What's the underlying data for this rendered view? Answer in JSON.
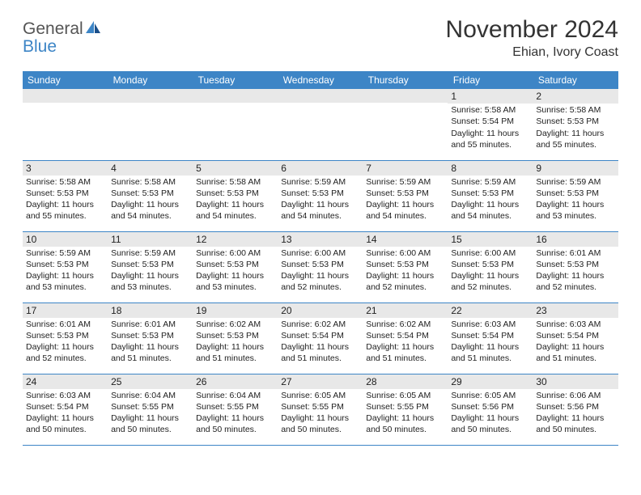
{
  "brand": {
    "word1": "General",
    "word2": "Blue"
  },
  "header": {
    "month_title": "November 2024",
    "location": "Ehian, Ivory Coast"
  },
  "colors": {
    "header_bg": "#3d85c6",
    "header_text": "#ffffff",
    "daynum_bg": "#e8e8e8",
    "rule": "#3d85c6",
    "text": "#222222",
    "brand_gray": "#555555",
    "brand_blue": "#3d85c6",
    "page_bg": "#ffffff"
  },
  "typography": {
    "month_title_fontsize": 30,
    "location_fontsize": 16,
    "weekday_fontsize": 12,
    "daynum_fontsize": 12,
    "body_fontsize": 10.5,
    "font_family": "Arial"
  },
  "calendar": {
    "type": "table",
    "columns": [
      "Sunday",
      "Monday",
      "Tuesday",
      "Wednesday",
      "Thursday",
      "Friday",
      "Saturday"
    ],
    "weeks": [
      [
        {
          "day": null
        },
        {
          "day": null
        },
        {
          "day": null
        },
        {
          "day": null
        },
        {
          "day": null
        },
        {
          "day": "1",
          "sunrise": "Sunrise: 5:58 AM",
          "sunset": "Sunset: 5:54 PM",
          "daylight1": "Daylight: 11 hours",
          "daylight2": "and 55 minutes."
        },
        {
          "day": "2",
          "sunrise": "Sunrise: 5:58 AM",
          "sunset": "Sunset: 5:53 PM",
          "daylight1": "Daylight: 11 hours",
          "daylight2": "and 55 minutes."
        }
      ],
      [
        {
          "day": "3",
          "sunrise": "Sunrise: 5:58 AM",
          "sunset": "Sunset: 5:53 PM",
          "daylight1": "Daylight: 11 hours",
          "daylight2": "and 55 minutes."
        },
        {
          "day": "4",
          "sunrise": "Sunrise: 5:58 AM",
          "sunset": "Sunset: 5:53 PM",
          "daylight1": "Daylight: 11 hours",
          "daylight2": "and 54 minutes."
        },
        {
          "day": "5",
          "sunrise": "Sunrise: 5:58 AM",
          "sunset": "Sunset: 5:53 PM",
          "daylight1": "Daylight: 11 hours",
          "daylight2": "and 54 minutes."
        },
        {
          "day": "6",
          "sunrise": "Sunrise: 5:59 AM",
          "sunset": "Sunset: 5:53 PM",
          "daylight1": "Daylight: 11 hours",
          "daylight2": "and 54 minutes."
        },
        {
          "day": "7",
          "sunrise": "Sunrise: 5:59 AM",
          "sunset": "Sunset: 5:53 PM",
          "daylight1": "Daylight: 11 hours",
          "daylight2": "and 54 minutes."
        },
        {
          "day": "8",
          "sunrise": "Sunrise: 5:59 AM",
          "sunset": "Sunset: 5:53 PM",
          "daylight1": "Daylight: 11 hours",
          "daylight2": "and 54 minutes."
        },
        {
          "day": "9",
          "sunrise": "Sunrise: 5:59 AM",
          "sunset": "Sunset: 5:53 PM",
          "daylight1": "Daylight: 11 hours",
          "daylight2": "and 53 minutes."
        }
      ],
      [
        {
          "day": "10",
          "sunrise": "Sunrise: 5:59 AM",
          "sunset": "Sunset: 5:53 PM",
          "daylight1": "Daylight: 11 hours",
          "daylight2": "and 53 minutes."
        },
        {
          "day": "11",
          "sunrise": "Sunrise: 5:59 AM",
          "sunset": "Sunset: 5:53 PM",
          "daylight1": "Daylight: 11 hours",
          "daylight2": "and 53 minutes."
        },
        {
          "day": "12",
          "sunrise": "Sunrise: 6:00 AM",
          "sunset": "Sunset: 5:53 PM",
          "daylight1": "Daylight: 11 hours",
          "daylight2": "and 53 minutes."
        },
        {
          "day": "13",
          "sunrise": "Sunrise: 6:00 AM",
          "sunset": "Sunset: 5:53 PM",
          "daylight1": "Daylight: 11 hours",
          "daylight2": "and 52 minutes."
        },
        {
          "day": "14",
          "sunrise": "Sunrise: 6:00 AM",
          "sunset": "Sunset: 5:53 PM",
          "daylight1": "Daylight: 11 hours",
          "daylight2": "and 52 minutes."
        },
        {
          "day": "15",
          "sunrise": "Sunrise: 6:00 AM",
          "sunset": "Sunset: 5:53 PM",
          "daylight1": "Daylight: 11 hours",
          "daylight2": "and 52 minutes."
        },
        {
          "day": "16",
          "sunrise": "Sunrise: 6:01 AM",
          "sunset": "Sunset: 5:53 PM",
          "daylight1": "Daylight: 11 hours",
          "daylight2": "and 52 minutes."
        }
      ],
      [
        {
          "day": "17",
          "sunrise": "Sunrise: 6:01 AM",
          "sunset": "Sunset: 5:53 PM",
          "daylight1": "Daylight: 11 hours",
          "daylight2": "and 52 minutes."
        },
        {
          "day": "18",
          "sunrise": "Sunrise: 6:01 AM",
          "sunset": "Sunset: 5:53 PM",
          "daylight1": "Daylight: 11 hours",
          "daylight2": "and 51 minutes."
        },
        {
          "day": "19",
          "sunrise": "Sunrise: 6:02 AM",
          "sunset": "Sunset: 5:53 PM",
          "daylight1": "Daylight: 11 hours",
          "daylight2": "and 51 minutes."
        },
        {
          "day": "20",
          "sunrise": "Sunrise: 6:02 AM",
          "sunset": "Sunset: 5:54 PM",
          "daylight1": "Daylight: 11 hours",
          "daylight2": "and 51 minutes."
        },
        {
          "day": "21",
          "sunrise": "Sunrise: 6:02 AM",
          "sunset": "Sunset: 5:54 PM",
          "daylight1": "Daylight: 11 hours",
          "daylight2": "and 51 minutes."
        },
        {
          "day": "22",
          "sunrise": "Sunrise: 6:03 AM",
          "sunset": "Sunset: 5:54 PM",
          "daylight1": "Daylight: 11 hours",
          "daylight2": "and 51 minutes."
        },
        {
          "day": "23",
          "sunrise": "Sunrise: 6:03 AM",
          "sunset": "Sunset: 5:54 PM",
          "daylight1": "Daylight: 11 hours",
          "daylight2": "and 51 minutes."
        }
      ],
      [
        {
          "day": "24",
          "sunrise": "Sunrise: 6:03 AM",
          "sunset": "Sunset: 5:54 PM",
          "daylight1": "Daylight: 11 hours",
          "daylight2": "and 50 minutes."
        },
        {
          "day": "25",
          "sunrise": "Sunrise: 6:04 AM",
          "sunset": "Sunset: 5:55 PM",
          "daylight1": "Daylight: 11 hours",
          "daylight2": "and 50 minutes."
        },
        {
          "day": "26",
          "sunrise": "Sunrise: 6:04 AM",
          "sunset": "Sunset: 5:55 PM",
          "daylight1": "Daylight: 11 hours",
          "daylight2": "and 50 minutes."
        },
        {
          "day": "27",
          "sunrise": "Sunrise: 6:05 AM",
          "sunset": "Sunset: 5:55 PM",
          "daylight1": "Daylight: 11 hours",
          "daylight2": "and 50 minutes."
        },
        {
          "day": "28",
          "sunrise": "Sunrise: 6:05 AM",
          "sunset": "Sunset: 5:55 PM",
          "daylight1": "Daylight: 11 hours",
          "daylight2": "and 50 minutes."
        },
        {
          "day": "29",
          "sunrise": "Sunrise: 6:05 AM",
          "sunset": "Sunset: 5:56 PM",
          "daylight1": "Daylight: 11 hours",
          "daylight2": "and 50 minutes."
        },
        {
          "day": "30",
          "sunrise": "Sunrise: 6:06 AM",
          "sunset": "Sunset: 5:56 PM",
          "daylight1": "Daylight: 11 hours",
          "daylight2": "and 50 minutes."
        }
      ]
    ]
  }
}
